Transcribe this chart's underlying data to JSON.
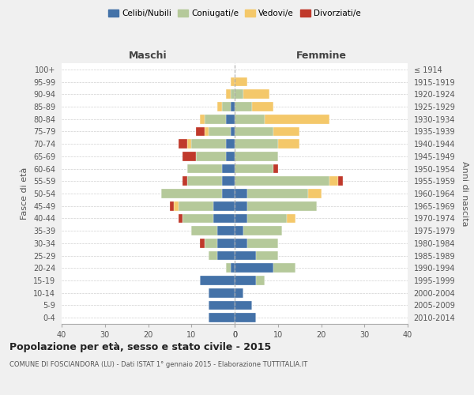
{
  "age_groups": [
    "0-4",
    "5-9",
    "10-14",
    "15-19",
    "20-24",
    "25-29",
    "30-34",
    "35-39",
    "40-44",
    "45-49",
    "50-54",
    "55-59",
    "60-64",
    "65-69",
    "70-74",
    "75-79",
    "80-84",
    "85-89",
    "90-94",
    "95-99",
    "100+"
  ],
  "birth_years": [
    "2010-2014",
    "2005-2009",
    "2000-2004",
    "1995-1999",
    "1990-1994",
    "1985-1989",
    "1980-1984",
    "1975-1979",
    "1970-1974",
    "1965-1969",
    "1960-1964",
    "1955-1959",
    "1950-1954",
    "1945-1949",
    "1940-1944",
    "1935-1939",
    "1930-1934",
    "1925-1929",
    "1920-1924",
    "1915-1919",
    "≤ 1914"
  ],
  "colors": {
    "celibi": "#4472a8",
    "coniugati": "#b5c99a",
    "vedovi": "#f4c86a",
    "divorziati": "#c0392b"
  },
  "males": {
    "celibi": [
      6,
      6,
      6,
      8,
      1,
      4,
      4,
      4,
      5,
      5,
      3,
      3,
      3,
      2,
      2,
      1,
      2,
      1,
      0,
      0,
      0
    ],
    "coniugati": [
      0,
      0,
      0,
      0,
      1,
      2,
      3,
      6,
      7,
      8,
      14,
      8,
      8,
      7,
      8,
      5,
      5,
      2,
      1,
      0,
      0
    ],
    "vedovi": [
      0,
      0,
      0,
      0,
      0,
      0,
      0,
      0,
      0,
      1,
      0,
      0,
      0,
      0,
      1,
      1,
      1,
      1,
      1,
      1,
      0
    ],
    "divorziati": [
      0,
      0,
      0,
      0,
      0,
      0,
      1,
      0,
      1,
      1,
      0,
      1,
      0,
      3,
      2,
      2,
      0,
      0,
      0,
      0,
      0
    ]
  },
  "females": {
    "celibi": [
      5,
      4,
      2,
      5,
      9,
      5,
      3,
      2,
      3,
      3,
      3,
      0,
      0,
      0,
      0,
      0,
      0,
      0,
      0,
      0,
      0
    ],
    "coniugati": [
      0,
      0,
      0,
      2,
      5,
      5,
      7,
      9,
      9,
      16,
      14,
      22,
      9,
      10,
      10,
      9,
      7,
      4,
      2,
      0,
      0
    ],
    "vedovi": [
      0,
      0,
      0,
      0,
      0,
      0,
      0,
      0,
      2,
      0,
      3,
      2,
      0,
      0,
      5,
      6,
      15,
      5,
      6,
      3,
      0
    ],
    "divorziati": [
      0,
      0,
      0,
      0,
      0,
      0,
      0,
      0,
      0,
      0,
      0,
      1,
      1,
      0,
      0,
      0,
      0,
      0,
      0,
      0,
      0
    ]
  },
  "xlim": 40,
  "title": "Popolazione per età, sesso e stato civile - 2015",
  "subtitle": "COMUNE DI FOSCIANDORA (LU) - Dati ISTAT 1° gennaio 2015 - Elaborazione TUTTITALIA.IT",
  "ylabel_left": "Fasce di età",
  "ylabel_right": "Anni di nascita",
  "xlabel_maschi": "Maschi",
  "xlabel_femmine": "Femmine",
  "bg_color": "#f0f0f0",
  "plot_bg_color": "#ffffff"
}
